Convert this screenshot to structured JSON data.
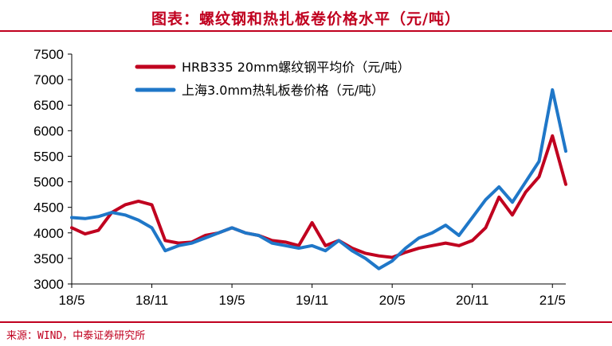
{
  "header": {
    "title": "图表：螺纹钢和热扎板卷价格水平（元/吨）"
  },
  "footer": {
    "source": "来源：WIND，中泰证券研究所"
  },
  "colors": {
    "accent": "#c0001f",
    "series_rebar": "#c0001f",
    "series_hrc": "#1f77c8"
  },
  "chart_data": {
    "type": "line",
    "title": "螺纹钢和热扎板卷价格水平（元/吨）",
    "xlabel": "",
    "ylabel": "",
    "ylim": [
      3000,
      7500
    ],
    "yticks": [
      3000,
      3500,
      4000,
      4500,
      5000,
      5500,
      6000,
      6500,
      7000,
      7500
    ],
    "xticks": [
      "18/5",
      "18/11",
      "19/5",
      "19/11",
      "20/5",
      "20/11",
      "21/5"
    ],
    "xlim": [
      "2018-05",
      "2021-06"
    ],
    "legend_position": "top-left",
    "grid": false,
    "series": [
      {
        "name": "HRB335 20mm螺纹钢平均价（元/吨）",
        "color": "#c0001f",
        "points": [
          [
            "2018-05",
            4100
          ],
          [
            "2018-06",
            3980
          ],
          [
            "2018-07",
            4050
          ],
          [
            "2018-08",
            4400
          ],
          [
            "2018-09",
            4550
          ],
          [
            "2018-10",
            4620
          ],
          [
            "2018-11",
            4550
          ],
          [
            "2018-12",
            3850
          ],
          [
            "2019-01",
            3800
          ],
          [
            "2019-02",
            3820
          ],
          [
            "2019-03",
            3950
          ],
          [
            "2019-04",
            4000
          ],
          [
            "2019-05",
            4100
          ],
          [
            "2019-06",
            4000
          ],
          [
            "2019-07",
            3950
          ],
          [
            "2019-08",
            3850
          ],
          [
            "2019-09",
            3820
          ],
          [
            "2019-10",
            3750
          ],
          [
            "2019-11",
            4200
          ],
          [
            "2019-12",
            3750
          ],
          [
            "2020-01",
            3850
          ],
          [
            "2020-02",
            3700
          ],
          [
            "2020-03",
            3600
          ],
          [
            "2020-04",
            3550
          ],
          [
            "2020-05",
            3520
          ],
          [
            "2020-06",
            3620
          ],
          [
            "2020-07",
            3700
          ],
          [
            "2020-08",
            3750
          ],
          [
            "2020-09",
            3800
          ],
          [
            "2020-10",
            3750
          ],
          [
            "2020-11",
            3850
          ],
          [
            "2020-12",
            4100
          ],
          [
            "2021-01",
            4700
          ],
          [
            "2021-02",
            4350
          ],
          [
            "2021-03",
            4800
          ],
          [
            "2021-04",
            5100
          ],
          [
            "2021-05",
            5900
          ],
          [
            "2021-06",
            4950
          ]
        ]
      },
      {
        "name": "上海3.0mm热轧板卷价格（元/吨）",
        "color": "#1f77c8",
        "points": [
          [
            "2018-05",
            4300
          ],
          [
            "2018-06",
            4280
          ],
          [
            "2018-07",
            4320
          ],
          [
            "2018-08",
            4400
          ],
          [
            "2018-09",
            4350
          ],
          [
            "2018-10",
            4250
          ],
          [
            "2018-11",
            4100
          ],
          [
            "2018-12",
            3650
          ],
          [
            "2019-01",
            3750
          ],
          [
            "2019-02",
            3800
          ],
          [
            "2019-03",
            3900
          ],
          [
            "2019-04",
            4000
          ],
          [
            "2019-05",
            4100
          ],
          [
            "2019-06",
            4000
          ],
          [
            "2019-07",
            3950
          ],
          [
            "2019-08",
            3800
          ],
          [
            "2019-09",
            3750
          ],
          [
            "2019-10",
            3700
          ],
          [
            "2019-11",
            3750
          ],
          [
            "2019-12",
            3650
          ],
          [
            "2020-01",
            3850
          ],
          [
            "2020-02",
            3650
          ],
          [
            "2020-03",
            3500
          ],
          [
            "2020-04",
            3300
          ],
          [
            "2020-05",
            3450
          ],
          [
            "2020-06",
            3700
          ],
          [
            "2020-07",
            3900
          ],
          [
            "2020-08",
            4000
          ],
          [
            "2020-09",
            4150
          ],
          [
            "2020-10",
            3950
          ],
          [
            "2020-11",
            4300
          ],
          [
            "2020-12",
            4650
          ],
          [
            "2021-01",
            4900
          ],
          [
            "2021-02",
            4600
          ],
          [
            "2021-03",
            5000
          ],
          [
            "2021-04",
            5400
          ],
          [
            "2021-05",
            6800
          ],
          [
            "2021-06",
            5600
          ]
        ]
      }
    ]
  }
}
